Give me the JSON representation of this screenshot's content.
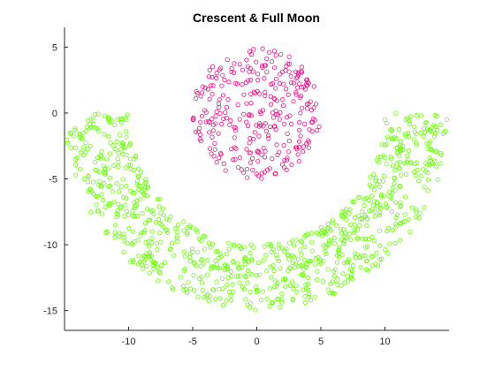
{
  "chart_data": {
    "type": "scatter",
    "title": "Crescent & Full Moon",
    "xlabel": "",
    "ylabel": "",
    "xlim": [
      -15,
      15
    ],
    "ylim": [
      -16.5,
      6.5
    ],
    "xticks": [
      -10,
      -5,
      0,
      5,
      10
    ],
    "yticks": [
      -15,
      -10,
      -5,
      0,
      5
    ],
    "grid": false,
    "marker": "circle-open",
    "series": [
      {
        "shape": "crescent",
        "color": "#66ff00",
        "count": 900,
        "x_range": [
          -15,
          15
        ],
        "y_range": [
          -15,
          0
        ],
        "center": [
          0,
          0
        ],
        "inner_radius": 10,
        "outer_radius": 15,
        "angle_range_deg": [
          180,
          360
        ]
      },
      {
        "shape": "full-moon",
        "color": "#ee1188",
        "count": 300,
        "x_range": [
          -5,
          5
        ],
        "y_range": [
          -5,
          5
        ],
        "center": [
          0,
          0
        ],
        "radius": 5
      }
    ]
  }
}
